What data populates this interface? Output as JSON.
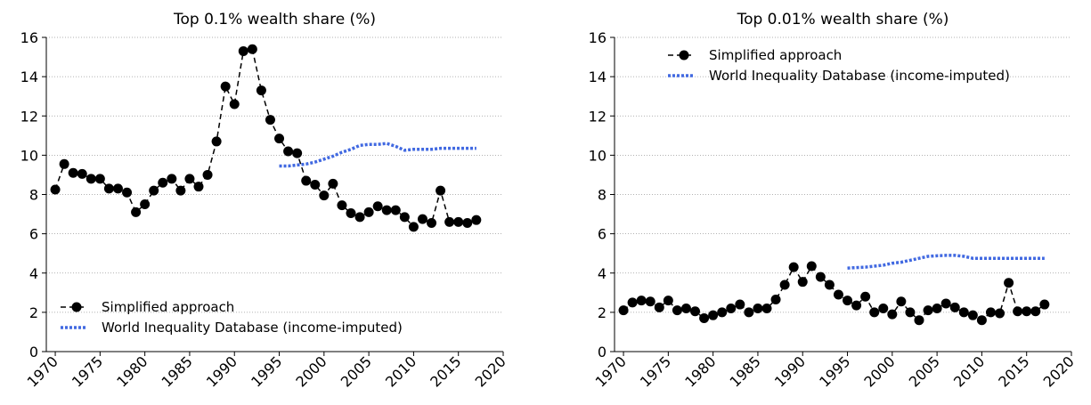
{
  "chart_data": [
    {
      "type": "line",
      "title": "Top 0.1% wealth share (%)",
      "xlim": [
        1969,
        2020
      ],
      "xticks": [
        1970,
        1975,
        1980,
        1985,
        1990,
        1995,
        2000,
        2005,
        2010,
        2015,
        2020
      ],
      "ylim": [
        0,
        16
      ],
      "yticks": [
        0,
        2,
        4,
        6,
        8,
        10,
        12,
        14,
        16
      ],
      "grid": true,
      "legend": "lower left",
      "series": [
        {
          "name": "Simplified approach",
          "color": "#000000",
          "style": "dashed-markers",
          "x": [
            1970,
            1971,
            1972,
            1973,
            1974,
            1975,
            1976,
            1977,
            1978,
            1979,
            1980,
            1981,
            1982,
            1983,
            1984,
            1985,
            1986,
            1987,
            1988,
            1989,
            1990,
            1991,
            1992,
            1993,
            1994,
            1995,
            1996,
            1997,
            1998,
            1999,
            2000,
            2001,
            2002,
            2003,
            2004,
            2005,
            2006,
            2007,
            2008,
            2009,
            2010,
            2011,
            2012,
            2013,
            2014,
            2015,
            2016,
            2017
          ],
          "values": [
            8.25,
            9.55,
            9.1,
            9.05,
            8.8,
            8.8,
            8.3,
            8.3,
            8.1,
            7.1,
            7.5,
            8.2,
            8.6,
            8.8,
            8.2,
            8.8,
            8.4,
            9.0,
            10.7,
            13.5,
            12.6,
            15.3,
            15.4,
            13.3,
            11.8,
            10.85,
            10.2,
            10.1,
            8.7,
            8.5,
            7.95,
            8.55,
            7.45,
            7.05,
            6.85,
            7.1,
            7.4,
            7.2,
            7.2,
            6.85,
            6.35,
            6.75,
            6.55,
            8.2,
            6.6,
            6.6,
            6.55,
            6.7
          ]
        },
        {
          "name": "World Inequality Database (income-imputed)",
          "color": "#4169e1",
          "style": "dotted",
          "x": [
            1995,
            1996,
            1997,
            1998,
            1999,
            2000,
            2001,
            2002,
            2003,
            2004,
            2005,
            2006,
            2007,
            2008,
            2009,
            2010,
            2011,
            2012,
            2013,
            2014,
            2015,
            2016,
            2017
          ],
          "values": [
            9.45,
            9.45,
            9.5,
            9.55,
            9.65,
            9.8,
            9.95,
            10.15,
            10.3,
            10.5,
            10.55,
            10.55,
            10.6,
            10.45,
            10.25,
            10.3,
            10.3,
            10.3,
            10.35,
            10.35,
            10.35,
            10.35,
            10.35
          ]
        }
      ]
    },
    {
      "type": "line",
      "title": "Top 0.01% wealth share (%)",
      "xlim": [
        1969,
        2020
      ],
      "xticks": [
        1970,
        1975,
        1980,
        1985,
        1990,
        1995,
        2000,
        2005,
        2010,
        2015,
        2020
      ],
      "ylim": [
        0,
        16
      ],
      "yticks": [
        0,
        2,
        4,
        6,
        8,
        10,
        12,
        14,
        16
      ],
      "grid": true,
      "legend": "upper left",
      "series": [
        {
          "name": "Simplified approach",
          "color": "#000000",
          "style": "dashed-markers",
          "x": [
            1970,
            1971,
            1972,
            1973,
            1974,
            1975,
            1976,
            1977,
            1978,
            1979,
            1980,
            1981,
            1982,
            1983,
            1984,
            1985,
            1986,
            1987,
            1988,
            1989,
            1990,
            1991,
            1992,
            1993,
            1994,
            1995,
            1996,
            1997,
            1998,
            1999,
            2000,
            2001,
            2002,
            2003,
            2004,
            2005,
            2006,
            2007,
            2008,
            2009,
            2010,
            2011,
            2012,
            2013,
            2014,
            2015,
            2016,
            2017
          ],
          "values": [
            2.1,
            2.5,
            2.6,
            2.55,
            2.25,
            2.6,
            2.1,
            2.2,
            2.05,
            1.7,
            1.85,
            2.0,
            2.2,
            2.4,
            2.0,
            2.2,
            2.2,
            2.65,
            3.4,
            4.3,
            3.55,
            4.35,
            3.8,
            3.4,
            2.9,
            2.6,
            2.35,
            2.8,
            2.0,
            2.2,
            1.9,
            2.55,
            2.0,
            1.6,
            2.1,
            2.2,
            2.45,
            2.25,
            2.0,
            1.85,
            1.6,
            2.0,
            1.95,
            3.5,
            2.05,
            2.05,
            2.05,
            2.4
          ]
        },
        {
          "name": "World Inequality Database (income-imputed)",
          "color": "#4169e1",
          "style": "dotted",
          "x": [
            1995,
            1996,
            1997,
            1998,
            1999,
            2000,
            2001,
            2002,
            2003,
            2004,
            2005,
            2006,
            2007,
            2008,
            2009,
            2010,
            2011,
            2012,
            2013,
            2014,
            2015,
            2016,
            2017
          ],
          "values": [
            4.25,
            4.28,
            4.3,
            4.35,
            4.4,
            4.5,
            4.55,
            4.65,
            4.75,
            4.85,
            4.88,
            4.9,
            4.9,
            4.85,
            4.75,
            4.75,
            4.75,
            4.75,
            4.75,
            4.75,
            4.75,
            4.75,
            4.75
          ]
        }
      ]
    }
  ]
}
